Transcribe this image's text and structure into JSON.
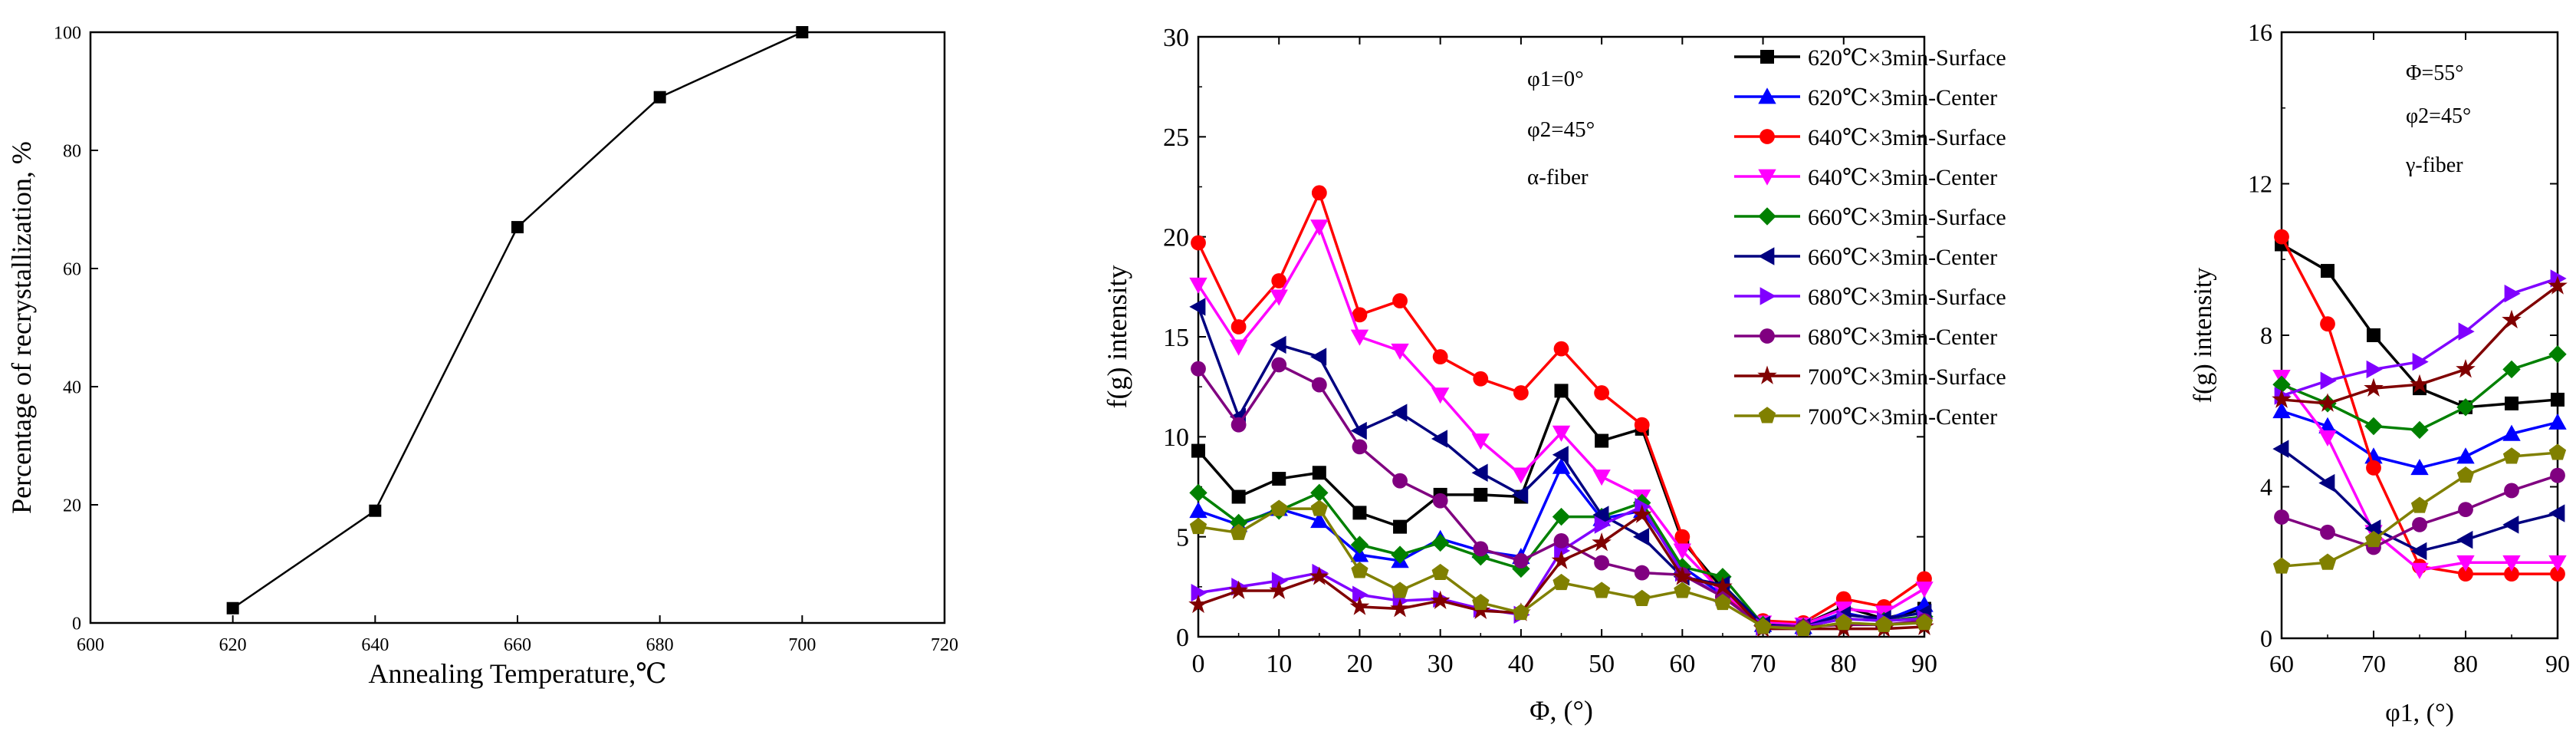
{
  "chart_data": [
    {
      "type": "line",
      "title": "",
      "xlabel": "Annealing Temperature,℃",
      "ylabel": "Percentage of recrystallization, %",
      "xlim": [
        600,
        720
      ],
      "ylim": [
        0,
        100
      ],
      "xticks": [
        600,
        620,
        640,
        660,
        680,
        700,
        720
      ],
      "yticks": [
        0,
        20,
        40,
        60,
        80,
        100
      ],
      "series": [
        {
          "name": "recrystallization",
          "color": "#000000",
          "marker": "square",
          "x": [
            620,
            640,
            660,
            680,
            700
          ],
          "y": [
            2.5,
            19,
            67,
            89,
            100
          ]
        }
      ]
    },
    {
      "type": "line",
      "title": "",
      "xlabel": "Φ, (°)",
      "ylabel": "f(g) intensity",
      "xlim": [
        0,
        90
      ],
      "ylim": [
        0,
        30
      ],
      "xticks": [
        0,
        10,
        20,
        30,
        40,
        50,
        60,
        70,
        80,
        90
      ],
      "yticks": [
        0,
        5,
        10,
        15,
        20,
        25,
        30
      ],
      "annotations": [
        "φ1=0°",
        "φ2=45°",
        "α-fiber"
      ],
      "legend": "top-right",
      "x": [
        0,
        5,
        10,
        15,
        20,
        25,
        30,
        35,
        40,
        45,
        50,
        55,
        60,
        65,
        70,
        75,
        80,
        85,
        90
      ],
      "series": [
        {
          "name": "620℃×3min-Surface",
          "color": "#000000",
          "marker": "square",
          "values": [
            9.3,
            7.0,
            7.9,
            8.2,
            6.2,
            5.5,
            7.1,
            7.1,
            7.0,
            12.3,
            9.8,
            10.4,
            4.8,
            2.4,
            0.7,
            0.6,
            1.5,
            0.9,
            1.4
          ]
        },
        {
          "name": "620℃×3min-Center",
          "color": "#0000ff",
          "marker": "triangle-up",
          "values": [
            6.3,
            5.6,
            6.4,
            5.8,
            4.1,
            3.8,
            4.9,
            4.3,
            4.0,
            8.5,
            5.9,
            6.3,
            3.5,
            2.1,
            0.6,
            0.5,
            1.2,
            0.8,
            1.6
          ]
        },
        {
          "name": "640℃×3min-Surface",
          "color": "#ff0000",
          "marker": "circle",
          "values": [
            19.7,
            15.5,
            17.8,
            22.2,
            16.1,
            16.8,
            14.0,
            12.9,
            12.2,
            14.4,
            12.2,
            10.6,
            5.0,
            2.0,
            0.8,
            0.7,
            1.9,
            1.5,
            2.9
          ]
        },
        {
          "name": "640℃×3min-Center",
          "color": "#ff00ff",
          "marker": "triangle-down",
          "values": [
            17.6,
            14.5,
            17.0,
            20.5,
            15.0,
            14.3,
            12.1,
            9.8,
            8.1,
            10.2,
            8.0,
            7.0,
            4.3,
            2.2,
            0.7,
            0.6,
            1.4,
            1.2,
            2.4
          ]
        },
        {
          "name": "660℃×3min-Surface",
          "color": "#008000",
          "marker": "diamond",
          "values": [
            7.2,
            5.7,
            6.3,
            7.2,
            4.6,
            4.1,
            4.7,
            4.0,
            3.4,
            6.0,
            6.0,
            6.7,
            3.5,
            3.0,
            0.6,
            0.5,
            0.9,
            0.8,
            1.0
          ]
        },
        {
          "name": "660℃×3min-Center",
          "color": "#000080",
          "marker": "triangle-left",
          "values": [
            16.5,
            11.0,
            14.6,
            14.0,
            10.3,
            11.2,
            9.9,
            8.2,
            7.1,
            9.1,
            6.1,
            5.0,
            3.0,
            2.6,
            0.6,
            0.5,
            1.1,
            0.9,
            1.2
          ]
        },
        {
          "name": "680℃×3min-Surface",
          "color": "#8000ff",
          "marker": "triangle-right",
          "values": [
            2.2,
            2.5,
            2.8,
            3.2,
            2.1,
            1.8,
            1.9,
            1.4,
            1.1,
            4.3,
            5.6,
            6.5,
            3.2,
            2.0,
            0.5,
            0.5,
            0.9,
            0.8,
            0.9
          ]
        },
        {
          "name": "680℃×3min-Center",
          "color": "#800080",
          "marker": "circle",
          "values": [
            13.4,
            10.6,
            13.6,
            12.6,
            9.5,
            7.8,
            6.8,
            4.4,
            3.8,
            4.8,
            3.7,
            3.2,
            3.1,
            2.0,
            0.5,
            0.5,
            0.6,
            0.6,
            0.8
          ]
        },
        {
          "name": "700℃×3min-Surface",
          "color": "#800000",
          "marker": "star",
          "values": [
            1.6,
            2.3,
            2.3,
            3.0,
            1.5,
            1.4,
            1.8,
            1.3,
            1.2,
            3.8,
            4.7,
            6.1,
            3.0,
            2.5,
            0.4,
            0.4,
            0.4,
            0.4,
            0.5
          ]
        },
        {
          "name": "700℃×3min-Center",
          "color": "#808000",
          "marker": "pentagon",
          "values": [
            5.5,
            5.2,
            6.4,
            6.4,
            3.3,
            2.3,
            3.2,
            1.7,
            1.2,
            2.7,
            2.3,
            1.9,
            2.3,
            1.7,
            0.5,
            0.4,
            0.7,
            0.6,
            0.7
          ]
        }
      ]
    },
    {
      "type": "line",
      "title": "",
      "xlabel": "φ1, (°)",
      "ylabel": "f(g) intensity",
      "xlim": [
        60,
        90
      ],
      "ylim": [
        0,
        16
      ],
      "xticks": [
        60,
        70,
        80,
        90
      ],
      "yticks": [
        0,
        4,
        8,
        12,
        16
      ],
      "annotations": [
        "Φ=55°",
        "φ2=45°",
        "γ-fiber"
      ],
      "x": [
        60,
        65,
        70,
        75,
        80,
        85,
        90
      ],
      "series": [
        {
          "name": "620℃×3min-Surface",
          "color": "#000000",
          "marker": "square",
          "values": [
            10.4,
            9.7,
            8.0,
            6.6,
            6.1,
            6.2,
            6.3
          ]
        },
        {
          "name": "620℃×3min-Center",
          "color": "#0000ff",
          "marker": "triangle-up",
          "values": [
            6.0,
            5.6,
            4.8,
            4.5,
            4.8,
            5.4,
            5.7
          ]
        },
        {
          "name": "640℃×3min-Surface",
          "color": "#ff0000",
          "marker": "circle",
          "values": [
            10.6,
            8.3,
            4.5,
            1.9,
            1.7,
            1.7,
            1.7
          ]
        },
        {
          "name": "640℃×3min-Center",
          "color": "#ff00ff",
          "marker": "triangle-down",
          "values": [
            6.9,
            5.3,
            2.8,
            1.8,
            2.0,
            2.0,
            2.0
          ]
        },
        {
          "name": "660℃×3min-Surface",
          "color": "#008000",
          "marker": "diamond",
          "values": [
            6.7,
            6.2,
            5.6,
            5.5,
            6.1,
            7.1,
            7.5
          ]
        },
        {
          "name": "660℃×3min-Center",
          "color": "#000080",
          "marker": "triangle-left",
          "values": [
            5.0,
            4.1,
            2.9,
            2.3,
            2.6,
            3.0,
            3.3
          ]
        },
        {
          "name": "680℃×3min-Surface",
          "color": "#8000ff",
          "marker": "triangle-right",
          "values": [
            6.4,
            6.8,
            7.1,
            7.3,
            8.1,
            9.1,
            9.5
          ]
        },
        {
          "name": "680℃×3min-Center",
          "color": "#800080",
          "marker": "circle",
          "values": [
            3.2,
            2.8,
            2.4,
            3.0,
            3.4,
            3.9,
            4.3
          ]
        },
        {
          "name": "700℃×3min-Surface",
          "color": "#800000",
          "marker": "star",
          "values": [
            6.3,
            6.2,
            6.6,
            6.7,
            7.1,
            8.4,
            9.3
          ]
        },
        {
          "name": "700℃×3min-Center",
          "color": "#808000",
          "marker": "pentagon",
          "values": [
            1.9,
            2.0,
            2.6,
            3.5,
            4.3,
            4.8,
            4.9
          ]
        }
      ]
    }
  ]
}
